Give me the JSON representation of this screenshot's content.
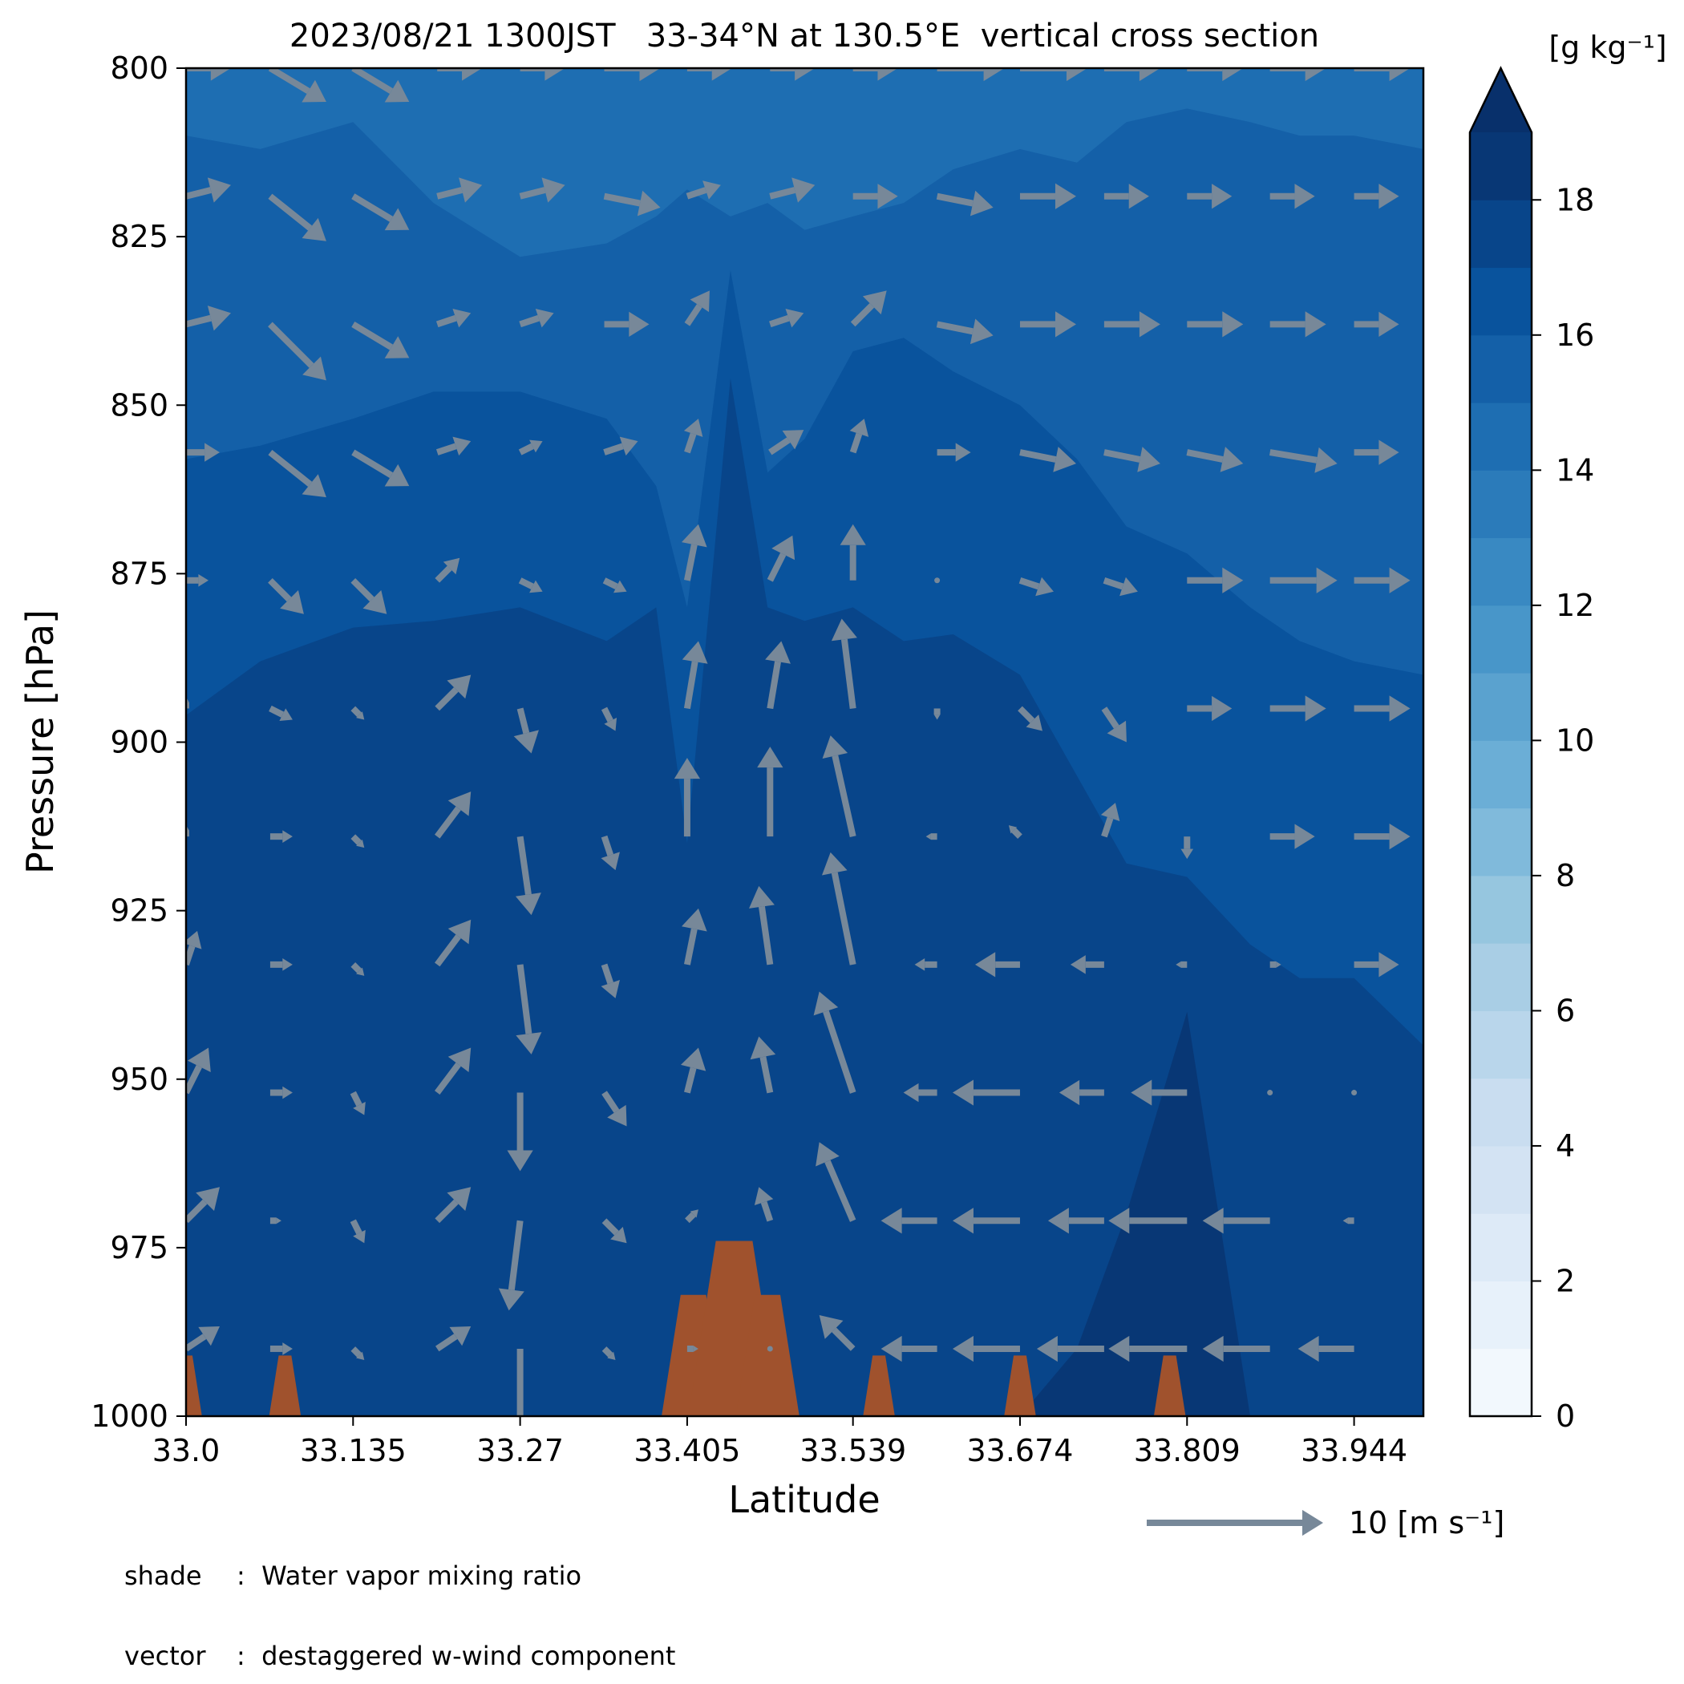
{
  "chart_data": {
    "type": "heatmap",
    "title": "2023/08/21 1300JST   33-34°N at 130.5°E  vertical cross section",
    "xlabel": "Latitude",
    "ylabel": "Pressure [hPa]",
    "x_ticks": [
      "33.0",
      "33.135",
      "33.27",
      "33.405",
      "33.539",
      "33.674",
      "33.809",
      "33.944"
    ],
    "y_ticks": [
      "800",
      "825",
      "850",
      "875",
      "900",
      "925",
      "950",
      "975",
      "1000"
    ],
    "xlim": [
      33.0,
      34.0
    ],
    "ylim": [
      1000,
      800
    ],
    "colorbar": {
      "label": "[g kg⁻¹]",
      "ticks": [
        "0",
        "2",
        "4",
        "6",
        "8",
        "10",
        "12",
        "14",
        "16",
        "18"
      ],
      "range": [
        0,
        19
      ],
      "step": 1,
      "extend": "max",
      "colormap": "Blues"
    },
    "reference_vector": {
      "value": 10,
      "label": "10 [m s⁻¹]",
      "color": "#778899"
    },
    "terrain_color": "#a0522d",
    "shading_profiles": {
      "columns_lat": [
        33.0,
        33.06,
        33.135,
        33.2,
        33.27,
        33.34,
        33.38,
        33.405,
        33.44,
        33.47,
        33.5,
        33.539,
        33.58,
        33.62,
        33.674,
        33.72,
        33.76,
        33.809,
        33.86,
        33.9,
        33.944,
        34.0
      ],
      "mix_15_boundary_hPa": [
        810,
        812,
        808,
        820,
        828,
        826,
        822,
        818,
        822,
        820,
        824,
        822,
        820,
        815,
        812,
        814,
        808,
        806,
        808,
        810,
        810,
        812
      ],
      "mix_16_boundary_hPa": [
        858,
        856,
        852,
        848,
        848,
        852,
        862,
        880,
        830,
        860,
        855,
        842,
        840,
        845,
        850,
        858,
        868,
        872,
        880,
        885,
        888,
        890
      ],
      "mix_17_boundary_hPa": [
        896,
        888,
        883,
        882,
        880,
        885,
        880,
        915,
        846,
        880,
        882,
        880,
        885,
        884,
        890,
        905,
        918,
        920,
        930,
        935,
        935,
        945
      ],
      "mix_18_boundary_hPa": [
        1000,
        1000,
        1000,
        1000,
        1000,
        1000,
        1000,
        1000,
        1000,
        1000,
        1000,
        1000,
        1000,
        1000,
        1000,
        990,
        970,
        940,
        1000,
        1000,
        1000,
        1000
      ]
    },
    "terrain": [
      {
        "lat": 33.0,
        "peak_hPa": 991
      },
      {
        "lat": 33.08,
        "peak_hPa": 991
      },
      {
        "lat": 33.41,
        "peak_hPa": 982
      },
      {
        "lat": 33.443,
        "peak_hPa": 974
      },
      {
        "lat": 33.47,
        "peak_hPa": 982
      },
      {
        "lat": 33.56,
        "peak_hPa": 991
      },
      {
        "lat": 33.674,
        "peak_hPa": 991
      },
      {
        "lat": 33.795,
        "peak_hPa": 991
      }
    ],
    "vectors": {
      "lats": [
        33.0,
        33.068,
        33.135,
        33.203,
        33.27,
        33.338,
        33.405,
        33.472,
        33.539,
        33.607,
        33.674,
        33.742,
        33.809,
        33.876,
        33.944
      ],
      "levels_hPa": [
        800,
        819,
        838,
        857,
        876,
        895,
        914,
        933,
        952,
        971,
        990
      ],
      "u": [
        [
          4,
          5,
          5,
          4,
          4,
          5,
          4,
          4,
          4,
          6,
          6,
          5,
          5,
          5,
          5
        ],
        [
          4,
          5,
          5,
          4,
          4,
          5,
          3,
          4,
          4,
          5,
          5,
          4,
          4,
          4,
          4
        ],
        [
          4,
          5,
          5,
          3,
          3,
          4,
          2,
          3,
          3,
          5,
          5,
          5,
          5,
          5,
          4
        ],
        [
          3,
          5,
          5,
          3,
          2,
          3,
          1,
          3,
          1,
          3,
          5,
          5,
          5,
          6,
          4
        ],
        [
          2,
          3,
          3,
          2,
          2,
          2,
          1,
          2,
          0,
          0,
          3,
          3,
          5,
          6,
          5
        ],
        [
          0,
          2,
          1,
          3,
          1,
          1,
          1,
          1,
          -1,
          0,
          2,
          2,
          4,
          5,
          5
        ],
        [
          0,
          2,
          1,
          3,
          1,
          1,
          0,
          0,
          -2,
          -1,
          -1,
          1,
          0,
          4,
          5
        ],
        [
          1,
          2,
          1,
          3,
          1,
          1,
          1,
          -1,
          -2,
          -2,
          -4,
          -3,
          -1,
          1,
          4
        ],
        [
          2,
          2,
          1,
          3,
          0,
          2,
          1,
          -1,
          -3,
          -3,
          -6,
          -4,
          -5,
          0,
          0
        ],
        [
          3,
          1,
          1,
          3,
          -1,
          2,
          1,
          -1,
          -3,
          -5,
          -6,
          -5,
          -7,
          -6,
          -1
        ],
        [
          3,
          2,
          1,
          3,
          0,
          1,
          1,
          0,
          -3,
          -5,
          -6,
          -6,
          -7,
          -6,
          -5
        ]
      ],
      "w": [
        [
          0,
          -3,
          -3,
          0,
          0,
          0,
          0,
          0,
          0,
          0,
          0,
          0,
          0,
          0,
          0
        ],
        [
          1,
          -4,
          -3,
          1,
          1,
          -1,
          1,
          1,
          0,
          -1,
          0,
          0,
          0,
          0,
          0
        ],
        [
          1,
          -5,
          -3,
          1,
          1,
          0,
          3,
          1,
          3,
          -1,
          0,
          0,
          0,
          0,
          0
        ],
        [
          0,
          -4,
          -3,
          1,
          1,
          1,
          3,
          2,
          3,
          0,
          -1,
          -1,
          -1,
          -1,
          0
        ],
        [
          0,
          -3,
          -3,
          2,
          -1,
          -1,
          5,
          4,
          5,
          0,
          -1,
          -1,
          0,
          0,
          0
        ],
        [
          1,
          -1,
          -1,
          3,
          -4,
          -2,
          6,
          6,
          8,
          -1,
          -2,
          -3,
          0,
          0,
          0
        ],
        [
          1,
          0,
          -1,
          4,
          -7,
          -3,
          7,
          8,
          9,
          0,
          1,
          3,
          -2,
          0,
          0
        ],
        [
          3,
          0,
          -1,
          4,
          -8,
          -3,
          5,
          7,
          10,
          0,
          0,
          0,
          0,
          0,
          0
        ],
        [
          4,
          0,
          -2,
          4,
          -7,
          -3,
          4,
          5,
          9,
          0,
          0,
          0,
          0,
          0,
          0
        ],
        [
          3,
          0,
          -2,
          3,
          -8,
          -2,
          1,
          3,
          7,
          0,
          0,
          0,
          0,
          0,
          0
        ],
        [
          2,
          0,
          -1,
          2,
          -9,
          -1,
          0,
          0,
          3,
          0,
          0,
          0,
          0,
          0,
          0
        ]
      ]
    }
  },
  "captions": {
    "shade_key": "shade",
    "shade_text": ":  Water vapor mixing ratio",
    "vector_key": "vector",
    "vector_text": ":  destaggered w-wind component"
  }
}
